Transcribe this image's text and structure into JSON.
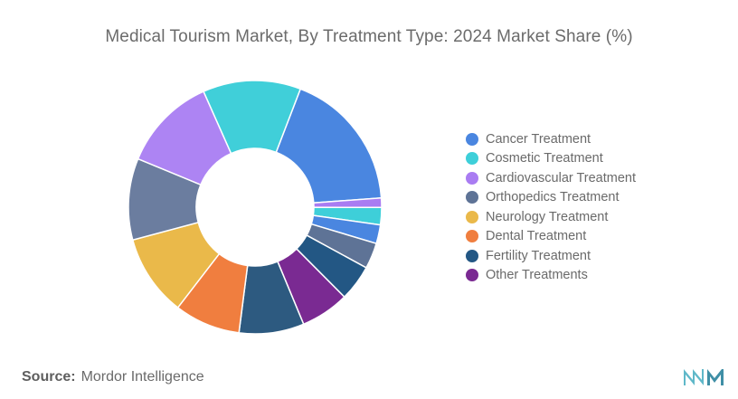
{
  "chart_data": {
    "type": "pie",
    "title": "Medical Tourism Market, By Treatment Type: 2024 Market Share (%)",
    "slices": [
      {
        "label": "",
        "value": 18.0,
        "color": "#4a86e0"
      },
      {
        "label": "",
        "value": 1.2,
        "color": "#a97cf2"
      },
      {
        "label": "",
        "value": 2.2,
        "color": "#3ecfd9"
      },
      {
        "label": "",
        "value": 2.4,
        "color": "#4a86e0"
      },
      {
        "label": "",
        "value": 3.3,
        "color": "#5e7396"
      },
      {
        "label": "",
        "value": 4.6,
        "color": "#235784"
      },
      {
        "label": "",
        "value": 6.2,
        "color": "#7a2a92"
      },
      {
        "label": "",
        "value": 8.3,
        "color": "#2d5a80"
      },
      {
        "label": "",
        "value": 8.4,
        "color": "#f07e3f"
      },
      {
        "label": "",
        "value": 10.4,
        "color": "#eab94a"
      },
      {
        "label": "",
        "value": 10.4,
        "color": "#6b7d9f"
      },
      {
        "label": "",
        "value": 12.1,
        "color": "#ad84f3"
      },
      {
        "label": "",
        "value": 12.5,
        "color": "#40cfd9"
      }
    ],
    "legend": [
      {
        "label": "Cancer Treatment",
        "color": "#4a86e0"
      },
      {
        "label": "Cosmetic Treatment",
        "color": "#3ecfd9"
      },
      {
        "label": "Cardiovascular Treatment",
        "color": "#a97cf2"
      },
      {
        "label": "Orthopedics Treatment",
        "color": "#5e7396"
      },
      {
        "label": "Neurology Treatment",
        "color": "#eab94a"
      },
      {
        "label": "Dental Treatment",
        "color": "#f07e3f"
      },
      {
        "label": "Fertility Treatment",
        "color": "#235784"
      },
      {
        "label": "Other Treatments",
        "color": "#7a2a92"
      }
    ],
    "legend_position": "right"
  },
  "source": {
    "label": "Source:",
    "text": "Mordor Intelligence"
  },
  "logo": {
    "name": "mordor-intelligence-logo",
    "color": "#5fb8c9"
  }
}
